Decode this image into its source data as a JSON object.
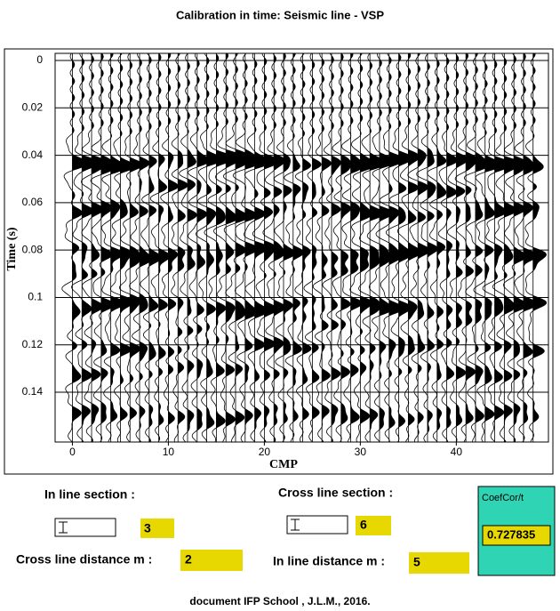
{
  "title": "Calibration in time:  Seismic line - VSP",
  "chart_data": {
    "type": "wiggle",
    "y_label": "Time (s)",
    "x_label": "CMP",
    "xlim": [
      -1.8,
      49.6
    ],
    "ylim": [
      -0.003,
      0.161
    ],
    "xticks": [
      0,
      10,
      20,
      30,
      40
    ],
    "yticks": [
      0,
      0.02,
      0.04,
      0.06,
      0.08,
      0.1,
      0.12,
      0.14
    ],
    "grid": true,
    "color": "#000000",
    "x": [
      0,
      1,
      2,
      3,
      4,
      5,
      6,
      7,
      8,
      9,
      10,
      11,
      12,
      13,
      14,
      15,
      16,
      17,
      18,
      19,
      20,
      21,
      22,
      23,
      24,
      25,
      26,
      27,
      28,
      29,
      30,
      31,
      32,
      33,
      34,
      35,
      36,
      37,
      38,
      39,
      40,
      41,
      42,
      43,
      44,
      45,
      46,
      47,
      48
    ],
    "reflectors": [
      {
        "time": 0.043,
        "amplitude": 1.2
      },
      {
        "time": 0.054,
        "amplitude": 0.8
      },
      {
        "time": 0.064,
        "amplitude": 0.9
      },
      {
        "time": 0.081,
        "amplitude": 1.0
      },
      {
        "time": 0.088,
        "amplitude": 0.6
      },
      {
        "time": 0.104,
        "amplitude": 1.0
      },
      {
        "time": 0.112,
        "amplitude": 0.6
      },
      {
        "time": 0.121,
        "amplitude": 0.8
      },
      {
        "time": 0.131,
        "amplitude": 0.6
      },
      {
        "time": 0.15,
        "amplitude": 0.5
      }
    ]
  },
  "controls": {
    "in_line_section": {
      "label": "In line section :",
      "value": "3"
    },
    "cross_line_section": {
      "label": "Cross line section :",
      "value": "6"
    },
    "cross_line_distance": {
      "label": "Cross line distance m :",
      "value": "2"
    },
    "in_line_distance": {
      "label": "In line distance m :",
      "value": "5"
    },
    "coef": {
      "label": "CoefCor/t",
      "value": "0.727835"
    }
  },
  "footer": "document IFP School , J.L.M., 2016."
}
